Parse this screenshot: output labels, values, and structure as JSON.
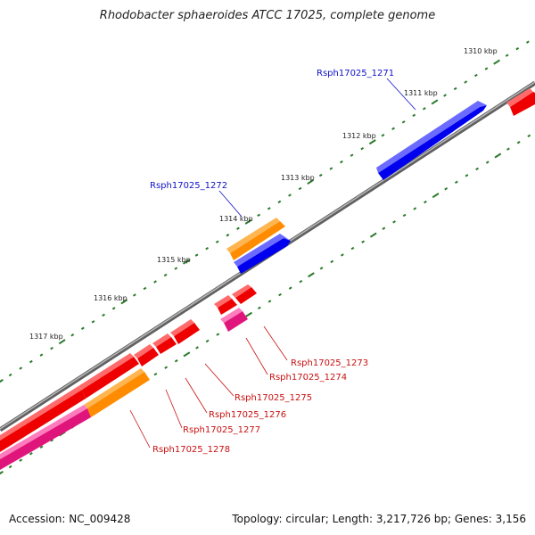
{
  "title": "Rhodobacter sphaeroides ATCC 17025, complete genome",
  "footer": {
    "accession": "Accession: NC_009428",
    "stats": "Topology: circular; Length: 3,217,726 bp; Genes: 3,156"
  },
  "colors": {
    "forward_label": "#1010c8",
    "reverse_label": "#c81010",
    "ticks": "#2a7a2a",
    "backbone": "#808080"
  },
  "tick_labels": [
    "1310 kbp",
    "1311 kbp",
    "1312 kbp",
    "1313 kbp",
    "1314 kbp",
    "1315 kbp",
    "1316 kbp",
    "1317 kbp"
  ],
  "genes": [
    {
      "id": "Rsph17025_1271",
      "color": "#0000ee"
    },
    {
      "id": "Rsph17025_1272",
      "color": "#0000ee"
    },
    {
      "id": "Rsph17025_1273",
      "color": "#ee0000"
    },
    {
      "id": "Rsph17025_1274",
      "color": "#ee0000"
    },
    {
      "id": "Rsph17025_1275",
      "color": "#ee0000"
    },
    {
      "id": "Rsph17025_1276",
      "color": "#ee0000"
    },
    {
      "id": "Rsph17025_1277",
      "color": "#ee0000"
    },
    {
      "id": "Rsph17025_1278",
      "color": "#ee0000"
    }
  ]
}
